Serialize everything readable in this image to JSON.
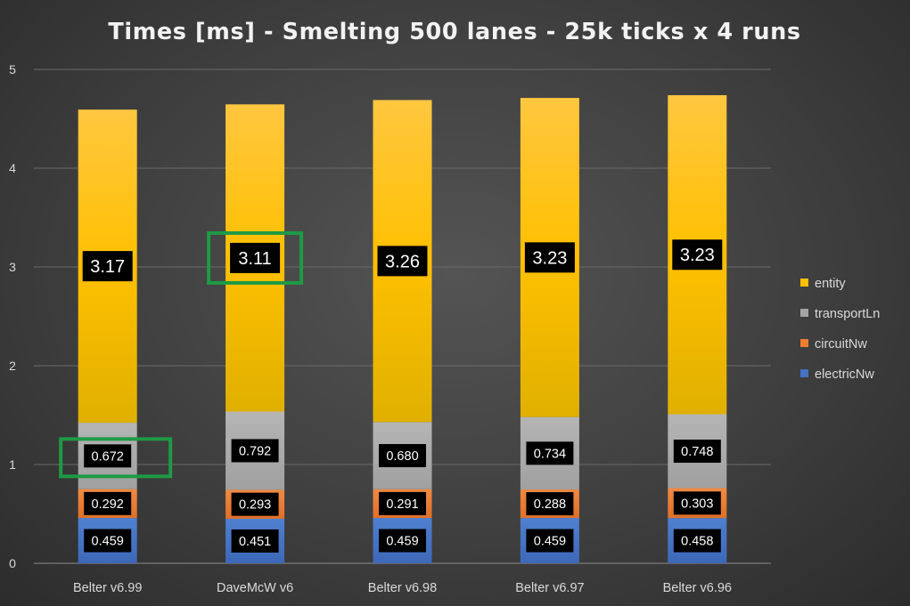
{
  "chart_data": {
    "type": "bar",
    "stacked": true,
    "title": "Times [ms] - Smelting 500 lanes - 25k ticks x 4 runs",
    "xlabel": "",
    "ylabel": "",
    "ylim": [
      0,
      5
    ],
    "yticks": [
      "0",
      "1",
      "2",
      "3",
      "4",
      "5"
    ],
    "grid": true,
    "legend_position": "right",
    "categories": [
      "Belter v6.99",
      "DaveMcW v6",
      "Belter v6.98",
      "Belter v6.97",
      "Belter v6.96"
    ],
    "series": [
      {
        "name": "electricNw",
        "color": "#4472c4",
        "values": [
          0.459,
          0.451,
          0.459,
          0.459,
          0.458
        ],
        "labels": [
          "0.459",
          "0.451",
          "0.459",
          "0.459",
          "0.458"
        ]
      },
      {
        "name": "circuitNw",
        "color": "#ed7d31",
        "values": [
          0.292,
          0.293,
          0.291,
          0.288,
          0.303
        ],
        "labels": [
          "0.292",
          "0.293",
          "0.291",
          "0.288",
          "0.303"
        ]
      },
      {
        "name": "transportLn",
        "color": "#a5a5a5",
        "values": [
          0.672,
          0.792,
          0.68,
          0.734,
          0.748
        ],
        "labels": [
          "0.672",
          "0.792",
          "0.680",
          "0.734",
          "0.748"
        ]
      },
      {
        "name": "entity",
        "color": "#ffc000",
        "values": [
          3.17,
          3.11,
          3.26,
          3.23,
          3.23
        ],
        "labels": [
          "3.17",
          "3.11",
          "3.26",
          "3.23",
          "3.23"
        ]
      }
    ],
    "highlight_color": "#1e9a45",
    "highlights": [
      {
        "category": "Belter v6.99",
        "series": "transportLn"
      },
      {
        "category": "DaveMcW v6",
        "series": "entity"
      }
    ]
  }
}
